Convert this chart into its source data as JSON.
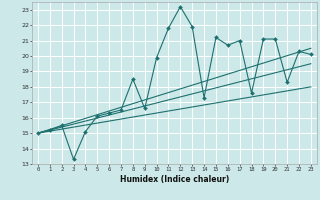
{
  "title": "",
  "xlabel": "Humidex (Indice chaleur)",
  "xlim": [
    -0.5,
    23.5
  ],
  "ylim": [
    13,
    23.5
  ],
  "xticks": [
    0,
    1,
    2,
    3,
    4,
    5,
    6,
    7,
    8,
    9,
    10,
    11,
    12,
    13,
    14,
    15,
    16,
    17,
    18,
    19,
    20,
    21,
    22,
    23
  ],
  "yticks": [
    13,
    14,
    15,
    16,
    17,
    18,
    19,
    20,
    21,
    22,
    23
  ],
  "bg_color": "#cce8e8",
  "grid_color": "#ffffff",
  "line_color": "#1e7070",
  "data_x": [
    0,
    1,
    2,
    3,
    4,
    5,
    6,
    7,
    8,
    9,
    10,
    11,
    12,
    13,
    14,
    15,
    16,
    17,
    18,
    19,
    20,
    21,
    22,
    23
  ],
  "data_y": [
    15,
    15.2,
    15.5,
    13.3,
    15.1,
    16.1,
    16.3,
    16.5,
    18.5,
    16.6,
    19.9,
    21.8,
    23.2,
    21.9,
    17.3,
    21.2,
    20.7,
    21.0,
    17.6,
    21.1,
    21.1,
    18.3,
    20.3,
    20.1
  ],
  "trend1_x": [
    0,
    23
  ],
  "trend1_y": [
    15.0,
    20.5
  ],
  "trend2_x": [
    0,
    23
  ],
  "trend2_y": [
    15.0,
    19.5
  ],
  "trend3_x": [
    0,
    23
  ],
  "trend3_y": [
    15.0,
    18.0
  ]
}
